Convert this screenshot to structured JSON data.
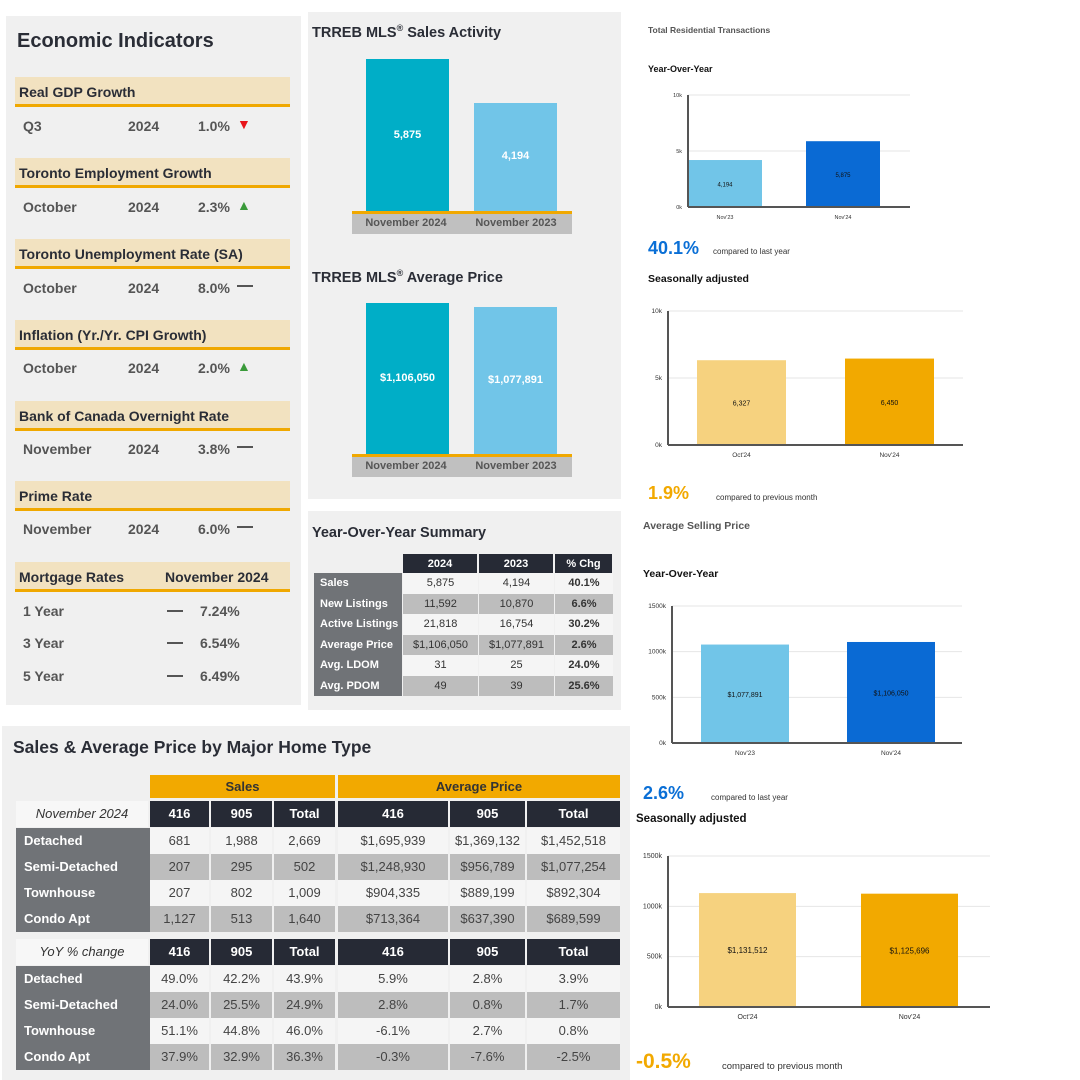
{
  "economic_indicators": {
    "title": "Economic Indicators",
    "items": [
      {
        "name": "Real GDP Growth",
        "period": "Q3",
        "year": "2024",
        "value": "1.0%",
        "trend": "down",
        "trend_icon": "triangle-down-icon",
        "trend_color": "#e8141b"
      },
      {
        "name": "Toronto Employment Growth",
        "period": "October",
        "year": "2024",
        "value": "2.3%",
        "trend": "up",
        "trend_icon": "triangle-up-icon",
        "trend_color": "#3a9a3a"
      },
      {
        "name": "Toronto Unemployment Rate (SA)",
        "period": "October",
        "year": "2024",
        "value": "8.0%",
        "trend": "flat",
        "trend_icon": "dash-icon"
      },
      {
        "name": "Inflation (Yr./Yr. CPI Growth)",
        "period": "October",
        "year": "2024",
        "value": "2.0%",
        "trend": "up",
        "trend_icon": "triangle-up-icon",
        "trend_color": "#3a9a3a"
      },
      {
        "name": "Bank of Canada Overnight Rate",
        "period": "November",
        "year": "2024",
        "value": "3.8%",
        "trend": "flat",
        "trend_icon": "dash-icon"
      },
      {
        "name": "Prime Rate",
        "period": "November",
        "year": "2024",
        "value": "6.0%",
        "trend": "flat",
        "trend_icon": "dash-icon"
      }
    ],
    "mortgage": {
      "label": "Mortgage Rates",
      "period": "November 2024",
      "rows": [
        {
          "term": "1 Year",
          "trend": "flat",
          "value": "7.24%"
        },
        {
          "term": "3 Year",
          "trend": "flat",
          "value": "6.54%"
        },
        {
          "term": "5 Year",
          "trend": "flat",
          "value": "6.49%"
        }
      ]
    }
  },
  "middle": {
    "sales_title_main": "TRREB MLS",
    "reg_mark": "®",
    "sales_title_rest": " Sales Activity",
    "price_title_rest": " Average Price",
    "categories": [
      "November 2024",
      "November 2023"
    ],
    "colors": [
      "#00aec7",
      "#71c5e8"
    ],
    "sales_values": [
      5875,
      4194
    ],
    "sales_labels": [
      "5,875",
      "4,194"
    ],
    "price_values": [
      1106050,
      1077891
    ],
    "price_labels": [
      "$1,106,050",
      "$1,077,891"
    ]
  },
  "yoy_summary": {
    "title": "Year-Over-Year Summary",
    "headers": [
      "2024",
      "2023",
      "% Chg"
    ],
    "rows": [
      {
        "label": "Sales",
        "v2024": "5,875",
        "v2023": "4,194",
        "chg": "40.1%"
      },
      {
        "label": "New Listings",
        "v2024": "11,592",
        "v2023": "10,870",
        "chg": "6.6%"
      },
      {
        "label": "Active Listings",
        "v2024": "21,818",
        "v2023": "16,754",
        "chg": "30.2%"
      },
      {
        "label": "Average Price",
        "v2024": "$1,106,050",
        "v2023": "$1,077,891",
        "chg": "2.6%"
      },
      {
        "label": "Avg. LDOM",
        "v2024": "31",
        "v2023": "25",
        "chg": "24.0%"
      },
      {
        "label": "Avg. PDOM",
        "v2024": "49",
        "v2023": "39",
        "chg": "25.6%"
      }
    ]
  },
  "home_type": {
    "title": "Sales & Average Price by Major Home Type",
    "band_sales": "Sales",
    "band_price": "Average Price",
    "section1": {
      "label": "November 2024",
      "headers": [
        "416",
        "905",
        "Total",
        "416",
        "905",
        "Total"
      ],
      "rows": [
        {
          "type": "Detached",
          "values": [
            "681",
            "1,988",
            "2,669",
            "$1,695,939",
            "$1,369,132",
            "$1,452,518"
          ]
        },
        {
          "type": "Semi-Detached",
          "values": [
            "207",
            "295",
            "502",
            "$1,248,930",
            "$956,789",
            "$1,077,254"
          ]
        },
        {
          "type": "Townhouse",
          "values": [
            "207",
            "802",
            "1,009",
            "$904,335",
            "$889,199",
            "$892,304"
          ]
        },
        {
          "type": "Condo Apt",
          "values": [
            "1,127",
            "513",
            "1,640",
            "$713,364",
            "$637,390",
            "$689,599"
          ]
        }
      ]
    },
    "section2": {
      "label": "YoY % change",
      "headers": [
        "416",
        "905",
        "Total",
        "416",
        "905",
        "Total"
      ],
      "rows": [
        {
          "type": "Detached",
          "values": [
            "49.0%",
            "42.2%",
            "43.9%",
            "5.9%",
            "2.8%",
            "3.9%"
          ]
        },
        {
          "type": "Semi-Detached",
          "values": [
            "24.0%",
            "25.5%",
            "24.9%",
            "2.8%",
            "0.8%",
            "1.7%"
          ]
        },
        {
          "type": "Townhouse",
          "values": [
            "51.1%",
            "44.8%",
            "46.0%",
            "-6.1%",
            "2.7%",
            "0.8%"
          ]
        },
        {
          "type": "Condo Apt",
          "values": [
            "37.9%",
            "32.9%",
            "36.3%",
            "-0.3%",
            "-7.6%",
            "-2.5%"
          ]
        }
      ]
    }
  },
  "right": {
    "transactions_title": "Total Residential Transactions",
    "price_title": "Average Selling Price",
    "yoy_label": "Year-Over-Year",
    "sa_label": "Seasonally adjusted",
    "transactions_yoy_change": "40.1%",
    "transactions_yoy_note": "compared to last year",
    "transactions_sa_change": "1.9%",
    "transactions_sa_note": "compared to previous month",
    "price_yoy_change": "2.6%",
    "price_yoy_note": "compared to last year",
    "price_sa_change": "-0.5%",
    "price_sa_note": "compared to previous month",
    "blue_accent": "#0a6fd6",
    "orange_accent": "#f2a900"
  },
  "chart_data": [
    {
      "type": "bar",
      "title": "TRREB MLS® Sales Activity",
      "categories": [
        "November 2024",
        "November 2023"
      ],
      "values": [
        5875,
        4194
      ],
      "data_labels": [
        "5,875",
        "4,194"
      ]
    },
    {
      "type": "bar",
      "title": "TRREB MLS® Average Price",
      "categories": [
        "November 2024",
        "November 2023"
      ],
      "values": [
        1106050,
        1077891
      ],
      "data_labels": [
        "$1,106,050",
        "$1,077,891"
      ]
    },
    {
      "type": "bar",
      "title": "Total Residential Transactions — Year-Over-Year",
      "categories": [
        "Nov'23",
        "Nov'24"
      ],
      "values": [
        4194,
        5875
      ],
      "data_labels": [
        "4,194",
        "5,875"
      ],
      "colors": [
        "#71c5e8",
        "#0a6ad4"
      ],
      "yticks": [
        "0k",
        "5k",
        "10k"
      ],
      "ytick_values": [
        0,
        5000,
        10000
      ],
      "ylim": [
        0,
        10000
      ],
      "grid": true
    },
    {
      "type": "bar",
      "title": "Total Residential Transactions — Seasonally adjusted",
      "categories": [
        "Oct'24",
        "Nov'24"
      ],
      "values": [
        6327,
        6450
      ],
      "data_labels": [
        "6,327",
        "6,450"
      ],
      "colors": [
        "#f6d27f",
        "#f2a900"
      ],
      "yticks": [
        "0k",
        "5k",
        "10k"
      ],
      "ytick_values": [
        0,
        5000,
        10000
      ],
      "ylim": [
        0,
        10000
      ],
      "grid": true
    },
    {
      "type": "bar",
      "title": "Average Selling Price — Year-Over-Year",
      "categories": [
        "Nov'23",
        "Nov'24"
      ],
      "values": [
        1077891,
        1106050
      ],
      "data_labels": [
        "$1,077,891",
        "$1,106,050"
      ],
      "colors": [
        "#71c5e8",
        "#0a6ad4"
      ],
      "yticks": [
        "0k",
        "500k",
        "1000k",
        "1500k"
      ],
      "ytick_values": [
        0,
        500000,
        1000000,
        1500000
      ],
      "ylim": [
        0,
        1500000
      ],
      "grid": true
    },
    {
      "type": "bar",
      "title": "Average Selling Price — Seasonally adjusted",
      "categories": [
        "Oct'24",
        "Nov'24"
      ],
      "values": [
        1131512,
        1125696
      ],
      "data_labels": [
        "$1,131,512",
        "$1,125,696"
      ],
      "colors": [
        "#f6d27f",
        "#f2a900"
      ],
      "yticks": [
        "0k",
        "500k",
        "1000k",
        "1500k"
      ],
      "ytick_values": [
        0,
        500000,
        1000000,
        1500000
      ],
      "ylim": [
        0,
        1500000
      ],
      "grid": true
    }
  ]
}
